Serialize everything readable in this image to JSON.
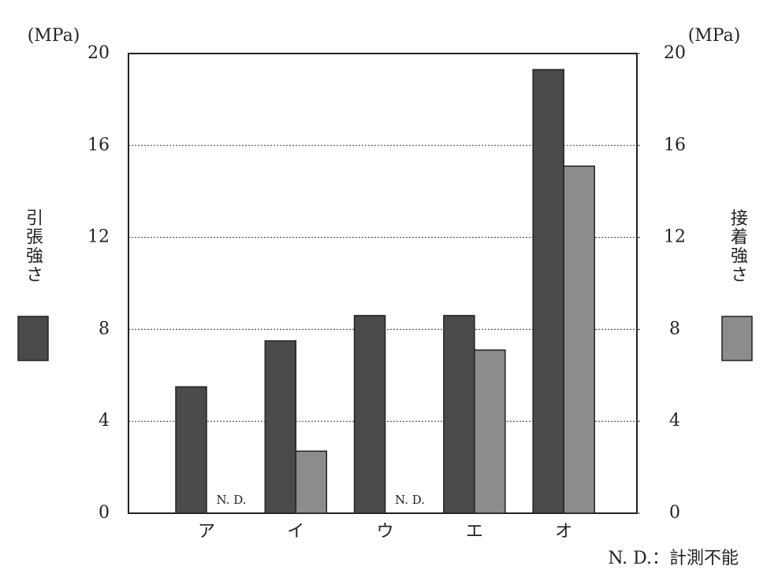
{
  "chart_data": {
    "type": "bar",
    "categories": [
      "ア",
      "イ",
      "ウ",
      "エ",
      "オ"
    ],
    "series": [
      {
        "name": "引張強さ",
        "color": "#4a4a4a",
        "values": [
          5.5,
          7.5,
          8.6,
          8.6,
          19.3
        ]
      },
      {
        "name": "接着強さ",
        "color": "#8c8c8c",
        "axis": "y2",
        "values": [
          null,
          2.7,
          null,
          7.1,
          15.1
        ],
        "value_labels": [
          "N. D.",
          null,
          "N. D.",
          null,
          null
        ]
      }
    ],
    "y_unit": "(MPa)",
    "y2_unit": "(MPa)",
    "ylim": [
      0,
      20
    ],
    "yticks": [
      0,
      4,
      8,
      12,
      16,
      20
    ],
    "y2lim": [
      0,
      20
    ],
    "y2ticks": [
      0,
      4,
      8,
      12,
      16,
      20
    ],
    "grid": true,
    "annotation": "N. D.：計測不能"
  }
}
